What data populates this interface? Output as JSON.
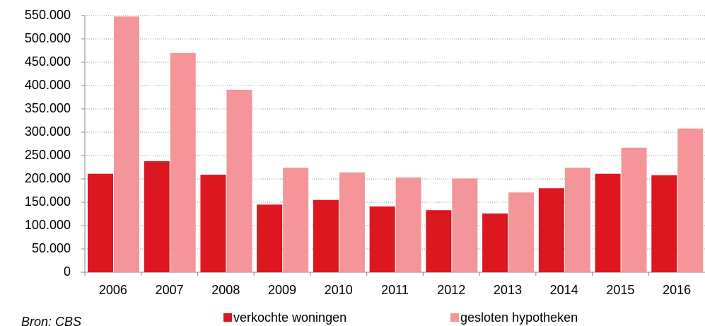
{
  "chart_data": {
    "type": "bar",
    "categories": [
      "2006",
      "2007",
      "2008",
      "2009",
      "2010",
      "2011",
      "2012",
      "2013",
      "2014",
      "2015",
      "2016"
    ],
    "series": [
      {
        "name": "verkochte woningen",
        "color": "#dc1720",
        "values": [
          211000,
          238000,
          209000,
          145000,
          155000,
          141000,
          133000,
          126000,
          180000,
          211000,
          208000
        ]
      },
      {
        "name": "gesloten hypotheken",
        "color": "#f4959a",
        "values": [
          548000,
          470000,
          391000,
          224000,
          214000,
          203000,
          201000,
          171000,
          224000,
          267000,
          308000
        ]
      }
    ],
    "ylim": [
      0,
      550000
    ],
    "yticks": [
      0,
      {
        "value": 50000,
        "label": "50.000"
      },
      {
        "value": 100000,
        "label": "100.000"
      },
      {
        "value": 150000,
        "label": "150.000"
      },
      {
        "value": 200000,
        "label": "200.000"
      },
      {
        "value": 250000,
        "label": "250.000"
      },
      {
        "value": 300000,
        "label": "300.000"
      },
      {
        "value": 350000,
        "label": "350.000"
      },
      {
        "value": 400000,
        "label": "400.000"
      },
      {
        "value": 450000,
        "label": "450.000"
      },
      {
        "value": 500000,
        "label": "500.000"
      },
      {
        "value": 550000,
        "label": "550.000"
      }
    ],
    "grid": true,
    "legend": "bottom",
    "source": "Bron: CBS"
  }
}
